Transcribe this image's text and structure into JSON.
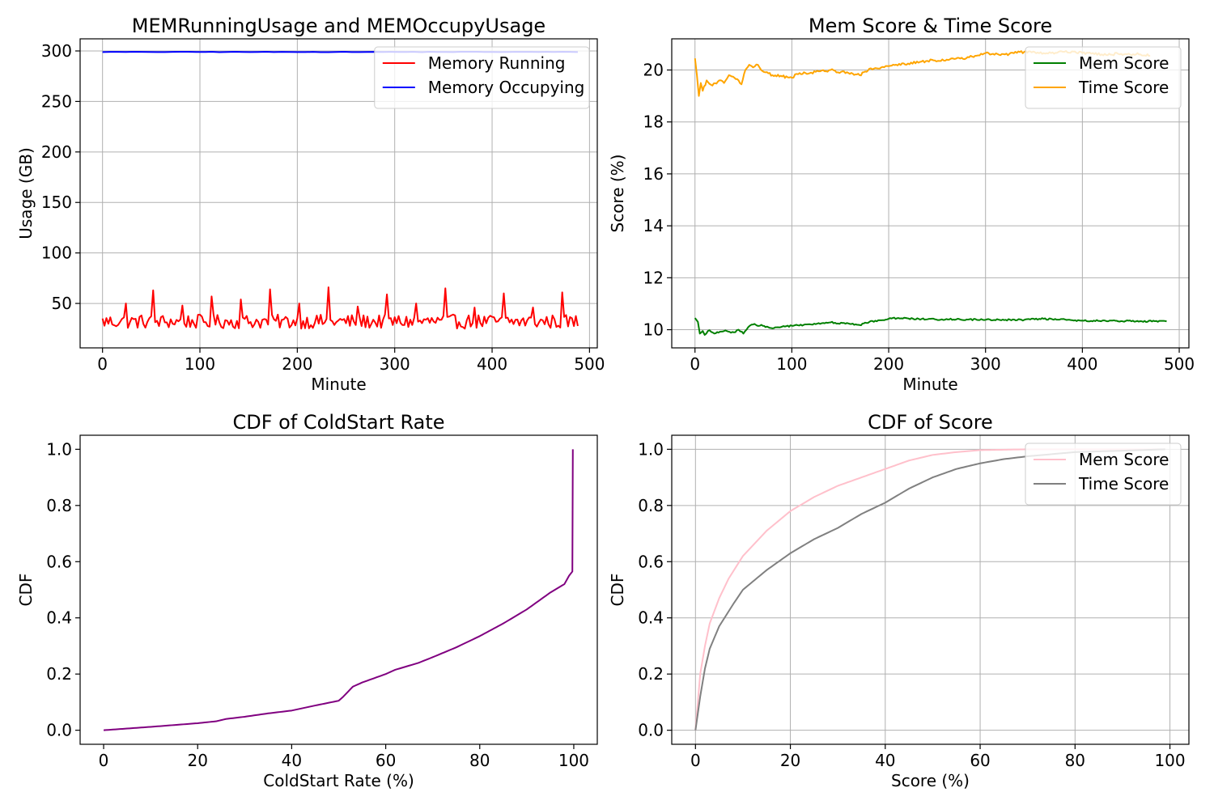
{
  "chart_data": [
    {
      "type": "line",
      "title": "MEMRunningUsage and MEMOccupyUsage",
      "xlabel": "Minute",
      "ylabel": "Usage (GB)",
      "xlim": [
        -23,
        508
      ],
      "ylim": [
        6,
        312
      ],
      "xticks": [
        0,
        100,
        200,
        300,
        400,
        500
      ],
      "yticks": [
        50,
        100,
        150,
        200,
        250,
        300
      ],
      "grid": true,
      "legend": "top-right",
      "series": [
        {
          "name": "Memory Running",
          "color": "#ff0000",
          "generator": "spiky",
          "x_range": [
            0,
            489
          ],
          "base": 32,
          "amp": 7,
          "spikes": [
            [
              23,
              50
            ],
            [
              52,
              63
            ],
            [
              82,
              48
            ],
            [
              112,
              57
            ],
            [
              142,
              54
            ],
            [
              172,
              64
            ],
            [
              202,
              50
            ],
            [
              232,
              66
            ],
            [
              262,
              47
            ],
            [
              292,
              59
            ],
            [
              322,
              50
            ],
            [
              352,
              65
            ],
            [
              382,
              46
            ],
            [
              412,
              60
            ],
            [
              442,
              46
            ],
            [
              472,
              61
            ]
          ]
        },
        {
          "name": "Memory Occupying",
          "color": "#0000ff",
          "generator": "flat",
          "x_range": [
            0,
            489
          ],
          "value": 299
        }
      ]
    },
    {
      "type": "line",
      "title": "Mem Score & Time Score",
      "xlabel": "Minute",
      "ylabel": "Score (%)",
      "xlim": [
        -24,
        510
      ],
      "ylim": [
        9.3,
        21.2
      ],
      "xticks": [
        0,
        100,
        200,
        300,
        400,
        500
      ],
      "yticks": [
        10,
        12,
        14,
        16,
        18,
        20
      ],
      "grid": true,
      "legend": "top-right",
      "series": [
        {
          "name": "Mem Score",
          "color": "#008000",
          "generator": "keypoints",
          "jitter": 0.03,
          "points": [
            [
              0,
              10.45
            ],
            [
              3,
              10.3
            ],
            [
              5,
              9.85
            ],
            [
              8,
              9.95
            ],
            [
              10,
              9.8
            ],
            [
              15,
              9.98
            ],
            [
              20,
              9.85
            ],
            [
              30,
              9.95
            ],
            [
              40,
              9.9
            ],
            [
              45,
              10.0
            ],
            [
              50,
              9.85
            ],
            [
              55,
              10.1
            ],
            [
              60,
              10.2
            ],
            [
              70,
              10.15
            ],
            [
              80,
              10.05
            ],
            [
              90,
              10.12
            ],
            [
              100,
              10.15
            ],
            [
              120,
              10.2
            ],
            [
              140,
              10.28
            ],
            [
              160,
              10.22
            ],
            [
              170,
              10.18
            ],
            [
              180,
              10.3
            ],
            [
              200,
              10.42
            ],
            [
              210,
              10.45
            ],
            [
              240,
              10.4
            ],
            [
              270,
              10.4
            ],
            [
              300,
              10.38
            ],
            [
              340,
              10.38
            ],
            [
              360,
              10.42
            ],
            [
              400,
              10.35
            ],
            [
              440,
              10.33
            ],
            [
              487,
              10.32
            ]
          ]
        },
        {
          "name": "Time Score",
          "color": "#ffa500",
          "generator": "keypoints",
          "jitter": 0.05,
          "points": [
            [
              0,
              20.45
            ],
            [
              2,
              19.8
            ],
            [
              4,
              19.0
            ],
            [
              6,
              19.5
            ],
            [
              8,
              19.2
            ],
            [
              12,
              19.6
            ],
            [
              18,
              19.4
            ],
            [
              25,
              19.6
            ],
            [
              30,
              19.5
            ],
            [
              35,
              19.8
            ],
            [
              45,
              19.6
            ],
            [
              48,
              19.45
            ],
            [
              52,
              20.0
            ],
            [
              56,
              20.2
            ],
            [
              60,
              20.1
            ],
            [
              65,
              20.2
            ],
            [
              70,
              19.95
            ],
            [
              80,
              19.8
            ],
            [
              90,
              19.75
            ],
            [
              100,
              19.7
            ],
            [
              105,
              19.85
            ],
            [
              120,
              19.9
            ],
            [
              140,
              20.0
            ],
            [
              160,
              19.85
            ],
            [
              170,
              19.8
            ],
            [
              180,
              20.05
            ],
            [
              200,
              20.15
            ],
            [
              220,
              20.25
            ],
            [
              240,
              20.35
            ],
            [
              260,
              20.4
            ],
            [
              280,
              20.45
            ],
            [
              300,
              20.65
            ],
            [
              320,
              20.6
            ],
            [
              340,
              20.7
            ],
            [
              360,
              20.65
            ],
            [
              380,
              20.7
            ],
            [
              400,
              20.65
            ],
            [
              420,
              20.6
            ],
            [
              440,
              20.62
            ],
            [
              460,
              20.6
            ],
            [
              470,
              20.55
            ]
          ]
        }
      ]
    },
    {
      "type": "line",
      "title": "CDF of ColdStart Rate",
      "xlabel": "ColdStart Rate (%)",
      "ylabel": "CDF",
      "xlim": [
        -5,
        105
      ],
      "ylim": [
        -0.05,
        1.05
      ],
      "xticks": [
        0,
        20,
        40,
        60,
        80,
        100
      ],
      "yticks": [
        0.0,
        0.2,
        0.4,
        0.6,
        0.8,
        1.0
      ],
      "ytick_format": "fixed1",
      "grid": false,
      "series": [
        {
          "name": "",
          "color": "#800080",
          "generator": "keypoints",
          "jitter": 0,
          "points": [
            [
              0,
              0.0
            ],
            [
              10,
              0.012
            ],
            [
              20,
              0.025
            ],
            [
              24,
              0.032
            ],
            [
              26,
              0.04
            ],
            [
              30,
              0.048
            ],
            [
              35,
              0.06
            ],
            [
              40,
              0.07
            ],
            [
              45,
              0.088
            ],
            [
              50,
              0.105
            ],
            [
              51,
              0.12
            ],
            [
              53,
              0.155
            ],
            [
              55,
              0.17
            ],
            [
              60,
              0.2
            ],
            [
              62,
              0.215
            ],
            [
              67,
              0.24
            ],
            [
              70,
              0.26
            ],
            [
              75,
              0.295
            ],
            [
              80,
              0.335
            ],
            [
              85,
              0.38
            ],
            [
              90,
              0.43
            ],
            [
              95,
              0.49
            ],
            [
              98,
              0.52
            ],
            [
              99,
              0.55
            ],
            [
              99.7,
              0.565
            ],
            [
              99.8,
              1.0
            ]
          ]
        }
      ]
    },
    {
      "type": "line",
      "title": "CDF of Score",
      "xlabel": "Score (%)",
      "ylabel": "CDF",
      "xlim": [
        -5,
        104
      ],
      "ylim": [
        -0.05,
        1.05
      ],
      "xticks": [
        0,
        20,
        40,
        60,
        80,
        100
      ],
      "yticks": [
        0.0,
        0.2,
        0.4,
        0.6,
        0.8,
        1.0
      ],
      "ytick_format": "fixed1",
      "grid": true,
      "legend": "top-right",
      "series": [
        {
          "name": "Mem Score",
          "color": "#ffc0cb",
          "generator": "keypoints",
          "jitter": 0,
          "points": [
            [
              0,
              0.0
            ],
            [
              0.5,
              0.1
            ],
            [
              1,
              0.2
            ],
            [
              2,
              0.3
            ],
            [
              3,
              0.38
            ],
            [
              5,
              0.47
            ],
            [
              7,
              0.54
            ],
            [
              10,
              0.62
            ],
            [
              15,
              0.71
            ],
            [
              20,
              0.78
            ],
            [
              25,
              0.83
            ],
            [
              30,
              0.87
            ],
            [
              35,
              0.9
            ],
            [
              40,
              0.93
            ],
            [
              45,
              0.96
            ],
            [
              50,
              0.98
            ],
            [
              55,
              0.99
            ],
            [
              60,
              0.997
            ],
            [
              70,
              1.0
            ],
            [
              99,
              1.0
            ]
          ]
        },
        {
          "name": "Time Score",
          "color": "#808080",
          "generator": "keypoints",
          "jitter": 0,
          "points": [
            [
              0,
              0.0
            ],
            [
              1,
              0.12
            ],
            [
              2,
              0.22
            ],
            [
              3,
              0.29
            ],
            [
              5,
              0.37
            ],
            [
              8,
              0.45
            ],
            [
              10,
              0.5
            ],
            [
              15,
              0.57
            ],
            [
              20,
              0.63
            ],
            [
              25,
              0.68
            ],
            [
              30,
              0.72
            ],
            [
              35,
              0.77
            ],
            [
              40,
              0.81
            ],
            [
              45,
              0.86
            ],
            [
              50,
              0.9
            ],
            [
              55,
              0.93
            ],
            [
              60,
              0.95
            ],
            [
              65,
              0.965
            ],
            [
              70,
              0.975
            ],
            [
              80,
              0.99
            ],
            [
              90,
              0.995
            ],
            [
              99,
              1.0
            ]
          ]
        }
      ]
    }
  ]
}
